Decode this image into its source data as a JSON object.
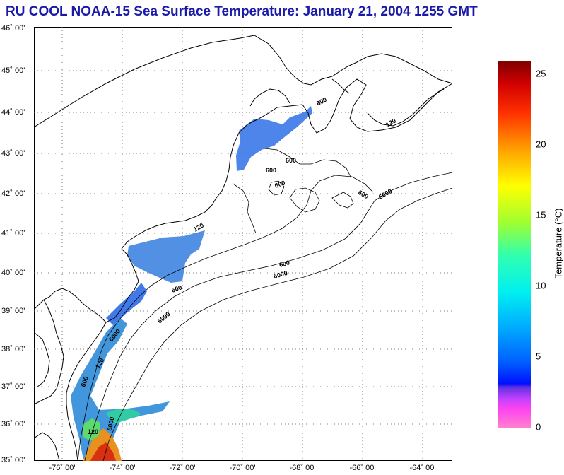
{
  "title": "RU COOL  NOAA-15  Sea Surface Temperature:  January 21, 2004 1255 GMT",
  "lat_labels": [
    "46˚ 00'",
    "45˚ 00'",
    "44˚ 00'",
    "43˚ 00'",
    "42˚ 00'",
    "41˚ 00'",
    "40˚ 00'",
    "39˚ 00'",
    "38˚ 00'",
    "37˚ 00'",
    "36˚ 00'",
    "35˚ 00'"
  ],
  "lon_labels": [
    "-76˚ 00'",
    "-74˚ 00'",
    "-72˚ 00'",
    "-70˚ 00'",
    "-68˚ 00'",
    "-66˚ 00'",
    "-64˚ 00'"
  ],
  "isobath_labels": [
    "600",
    "120",
    "600",
    "600",
    "600",
    "6000",
    "600",
    "6000",
    "120",
    "600",
    "6000",
    "600",
    "6000",
    "120",
    "600",
    "6000",
    "120"
  ],
  "colorbar": {
    "title": "Temperature (°C)",
    "ticks": [
      "25",
      "20",
      "15",
      "10",
      "5",
      "0"
    ],
    "range": [
      0,
      26
    ]
  },
  "colors": {
    "title": "#1a1aa8",
    "gridline": "#555555",
    "coast": "#000000"
  }
}
